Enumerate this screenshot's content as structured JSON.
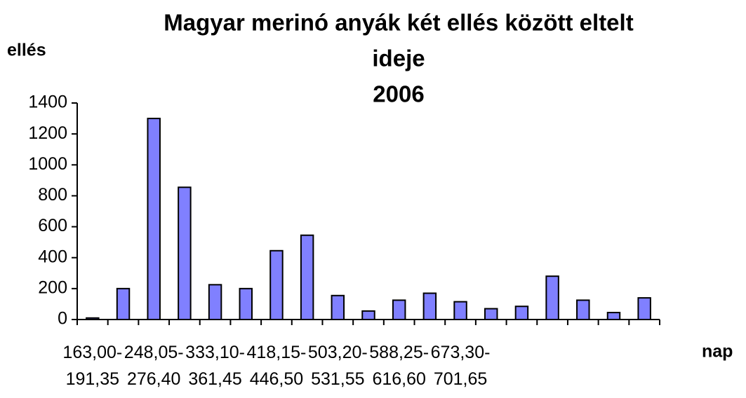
{
  "chart_data": {
    "type": "bar",
    "title": [
      "Magyar merinó anyák két ellés között eltelt",
      "ideje",
      "2006"
    ],
    "y_label": "ellés",
    "x_label": "nap",
    "categories": [
      "163,00- 191,35",
      null,
      "248,05- 276,40",
      null,
      "333,10- 361,45",
      null,
      "418,15- 446,50",
      null,
      "503,20- 531,55",
      null,
      "588,25- 616,60",
      null,
      "673,30- 701,65",
      null,
      null,
      null,
      null,
      null,
      null
    ],
    "values": [
      10,
      200,
      1300,
      855,
      225,
      200,
      445,
      545,
      155,
      55,
      125,
      170,
      115,
      70,
      85,
      280,
      125,
      45,
      140
    ],
    "color": "#8080ff",
    "ylim": [
      0,
      1400
    ],
    "yticks": [
      0,
      200,
      400,
      600,
      800,
      1000,
      1200,
      1400
    ],
    "grid": false
  }
}
